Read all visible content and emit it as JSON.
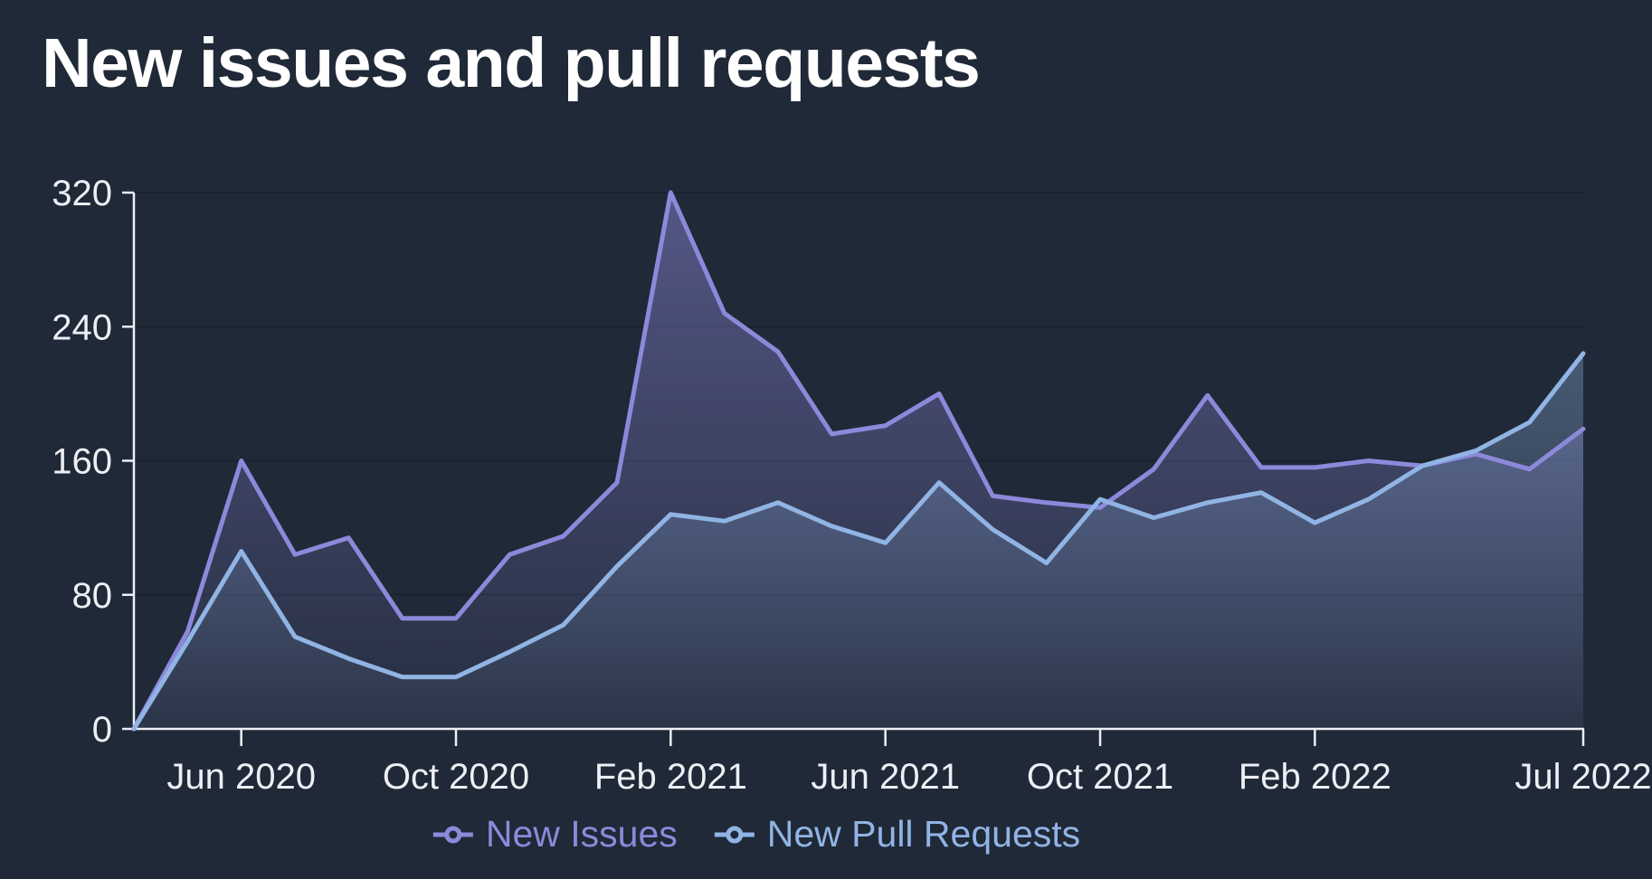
{
  "title": "New issues and pull requests",
  "colors": {
    "background": "#202937",
    "title_color": "#FFFFFF",
    "axis": "#ECEFF4",
    "grid": "#1A212F",
    "issues": "#8C89DB",
    "pull_requests": "#90B4E4"
  },
  "legend": {
    "items": [
      {
        "label": "New Issues",
        "color": "#8C89DB"
      },
      {
        "label": "New Pull Requests",
        "color": "#90B4E4"
      }
    ]
  },
  "chart_data": {
    "type": "area",
    "title": "New issues and pull requests",
    "xlabel": "",
    "ylabel": "",
    "grid": true,
    "legend_position": "bottom",
    "ylim": [
      0,
      320
    ],
    "yticks": [
      0,
      80,
      160,
      240,
      320
    ],
    "x": [
      "Apr 2020",
      "May 2020",
      "Jun 2020",
      "Jul 2020",
      "Aug 2020",
      "Sep 2020",
      "Oct 2020",
      "Nov 2020",
      "Dec 2020",
      "Jan 2021",
      "Feb 2021",
      "Mar 2021",
      "Apr 2021",
      "May 2021",
      "Jun 2021",
      "Jul 2021",
      "Aug 2021",
      "Sep 2021",
      "Oct 2021",
      "Nov 2021",
      "Dec 2021",
      "Jan 2022",
      "Feb 2022",
      "Mar 2022",
      "Apr 2022",
      "May 2022",
      "Jun 2022",
      "Jul 2022"
    ],
    "xticks": [
      {
        "index": 2,
        "label": "Jun 2020"
      },
      {
        "index": 6,
        "label": "Oct 2020"
      },
      {
        "index": 10,
        "label": "Feb 2021"
      },
      {
        "index": 14,
        "label": "Jun 2021"
      },
      {
        "index": 18,
        "label": "Oct 2021"
      },
      {
        "index": 22,
        "label": "Feb 2022"
      },
      {
        "index": 27,
        "label": "Jul 2022"
      }
    ],
    "series": [
      {
        "name": "New Issues",
        "color": "#8C89DB",
        "values": [
          0,
          58,
          160,
          104,
          114,
          66,
          66,
          104,
          115,
          147,
          320,
          248,
          225,
          176,
          181,
          200,
          139,
          135,
          132,
          155,
          199,
          156,
          156,
          160,
          157,
          164,
          155,
          179
        ]
      },
      {
        "name": "New Pull Requests",
        "color": "#90B4E4",
        "values": [
          0,
          52,
          106,
          55,
          42,
          31,
          31,
          46,
          62,
          97,
          128,
          124,
          135,
          121,
          111,
          147,
          119,
          99,
          137,
          126,
          135,
          141,
          123,
          137,
          157,
          166,
          183,
          224
        ]
      }
    ]
  }
}
